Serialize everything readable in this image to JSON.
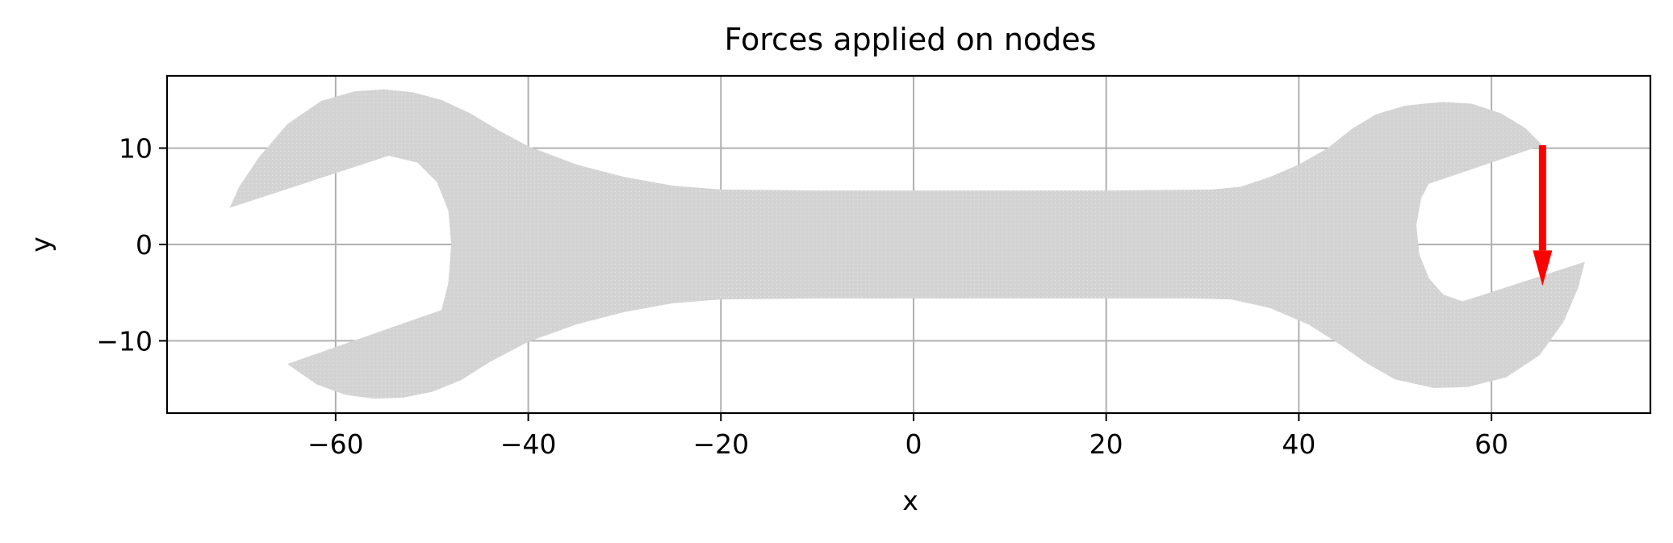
{
  "chart_data": {
    "type": "scatter",
    "title": "Forces applied on nodes",
    "xlabel": "x",
    "ylabel": "y",
    "xlim": [
      -77.5,
      76.5
    ],
    "ylim": [
      -17.5,
      17.5
    ],
    "xticks": [
      -60,
      -40,
      -20,
      0,
      20,
      40,
      60
    ],
    "xtick_labels": [
      "−60",
      "−40",
      "−20",
      "0",
      "20",
      "40",
      "60"
    ],
    "yticks": [
      -10,
      0,
      10
    ],
    "ytick_labels": [
      "−10",
      "0",
      "10"
    ],
    "grid": true,
    "legend": null,
    "series": [
      {
        "kind": "mesh-nodes",
        "color": "#d3d3d3",
        "outline": [
          [
            -71,
            3.8
          ],
          [
            -70,
            6
          ],
          [
            -68,
            9
          ],
          [
            -65,
            12.5
          ],
          [
            -61.5,
            14.9
          ],
          [
            -58,
            15.9
          ],
          [
            -55,
            16.1
          ],
          [
            -52,
            15.8
          ],
          [
            -49,
            15.0
          ],
          [
            -46,
            13.6
          ],
          [
            -43,
            11.8
          ],
          [
            -40,
            10.2
          ],
          [
            -35,
            8.3
          ],
          [
            -30,
            7
          ],
          [
            -25,
            6.1
          ],
          [
            -20,
            5.7
          ],
          [
            -10,
            5.6
          ],
          [
            0,
            5.6
          ],
          [
            10,
            5.6
          ],
          [
            20,
            5.6
          ],
          [
            31,
            5.7
          ],
          [
            34,
            6
          ],
          [
            37,
            7
          ],
          [
            40,
            8.3
          ],
          [
            43,
            10
          ],
          [
            45.5,
            12
          ],
          [
            48,
            13.5
          ],
          [
            51,
            14.4
          ],
          [
            55,
            14.8
          ],
          [
            58,
            14.6
          ],
          [
            61,
            13.6
          ],
          [
            63.5,
            12.1
          ],
          [
            65.3,
            10.3
          ],
          [
            53.5,
            6.3
          ],
          [
            52.7,
            4.8
          ],
          [
            52.2,
            2
          ],
          [
            52.5,
            -1
          ],
          [
            53.5,
            -3.5
          ],
          [
            55,
            -5.2
          ],
          [
            57,
            -5.9
          ],
          [
            69.7,
            -1.8
          ],
          [
            69,
            -4.5
          ],
          [
            67.5,
            -8
          ],
          [
            65,
            -11.5
          ],
          [
            61.5,
            -13.8
          ],
          [
            57.5,
            -14.8
          ],
          [
            54,
            -14.9
          ],
          [
            50,
            -14
          ],
          [
            47,
            -12.3
          ],
          [
            44,
            -10.2
          ],
          [
            41,
            -8.3
          ],
          [
            37,
            -6.6
          ],
          [
            33,
            -5.7
          ],
          [
            29,
            -5.6
          ],
          [
            20,
            -5.6
          ],
          [
            10,
            -5.6
          ],
          [
            0,
            -5.6
          ],
          [
            -10,
            -5.6
          ],
          [
            -20,
            -5.7
          ],
          [
            -25,
            -6.1
          ],
          [
            -30,
            -7
          ],
          [
            -35,
            -8.3
          ],
          [
            -40,
            -10.1
          ],
          [
            -44,
            -12.2
          ],
          [
            -47,
            -14.1
          ],
          [
            -50,
            -15.3
          ],
          [
            -53,
            -15.9
          ],
          [
            -56,
            -16
          ],
          [
            -59,
            -15.6
          ],
          [
            -62,
            -14.5
          ],
          [
            -65,
            -12.4
          ],
          [
            -49,
            -6.8
          ],
          [
            -48.3,
            -4
          ],
          [
            -48,
            0
          ],
          [
            -48.3,
            3.5
          ],
          [
            -49.5,
            6.5
          ],
          [
            -51.5,
            8.5
          ],
          [
            -54.5,
            9.2
          ]
        ]
      }
    ],
    "annotations": [
      {
        "kind": "force-arrow",
        "color": "#ff0000",
        "from": [
          65.3,
          10.3
        ],
        "to": [
          65.3,
          -4.3
        ]
      }
    ]
  }
}
